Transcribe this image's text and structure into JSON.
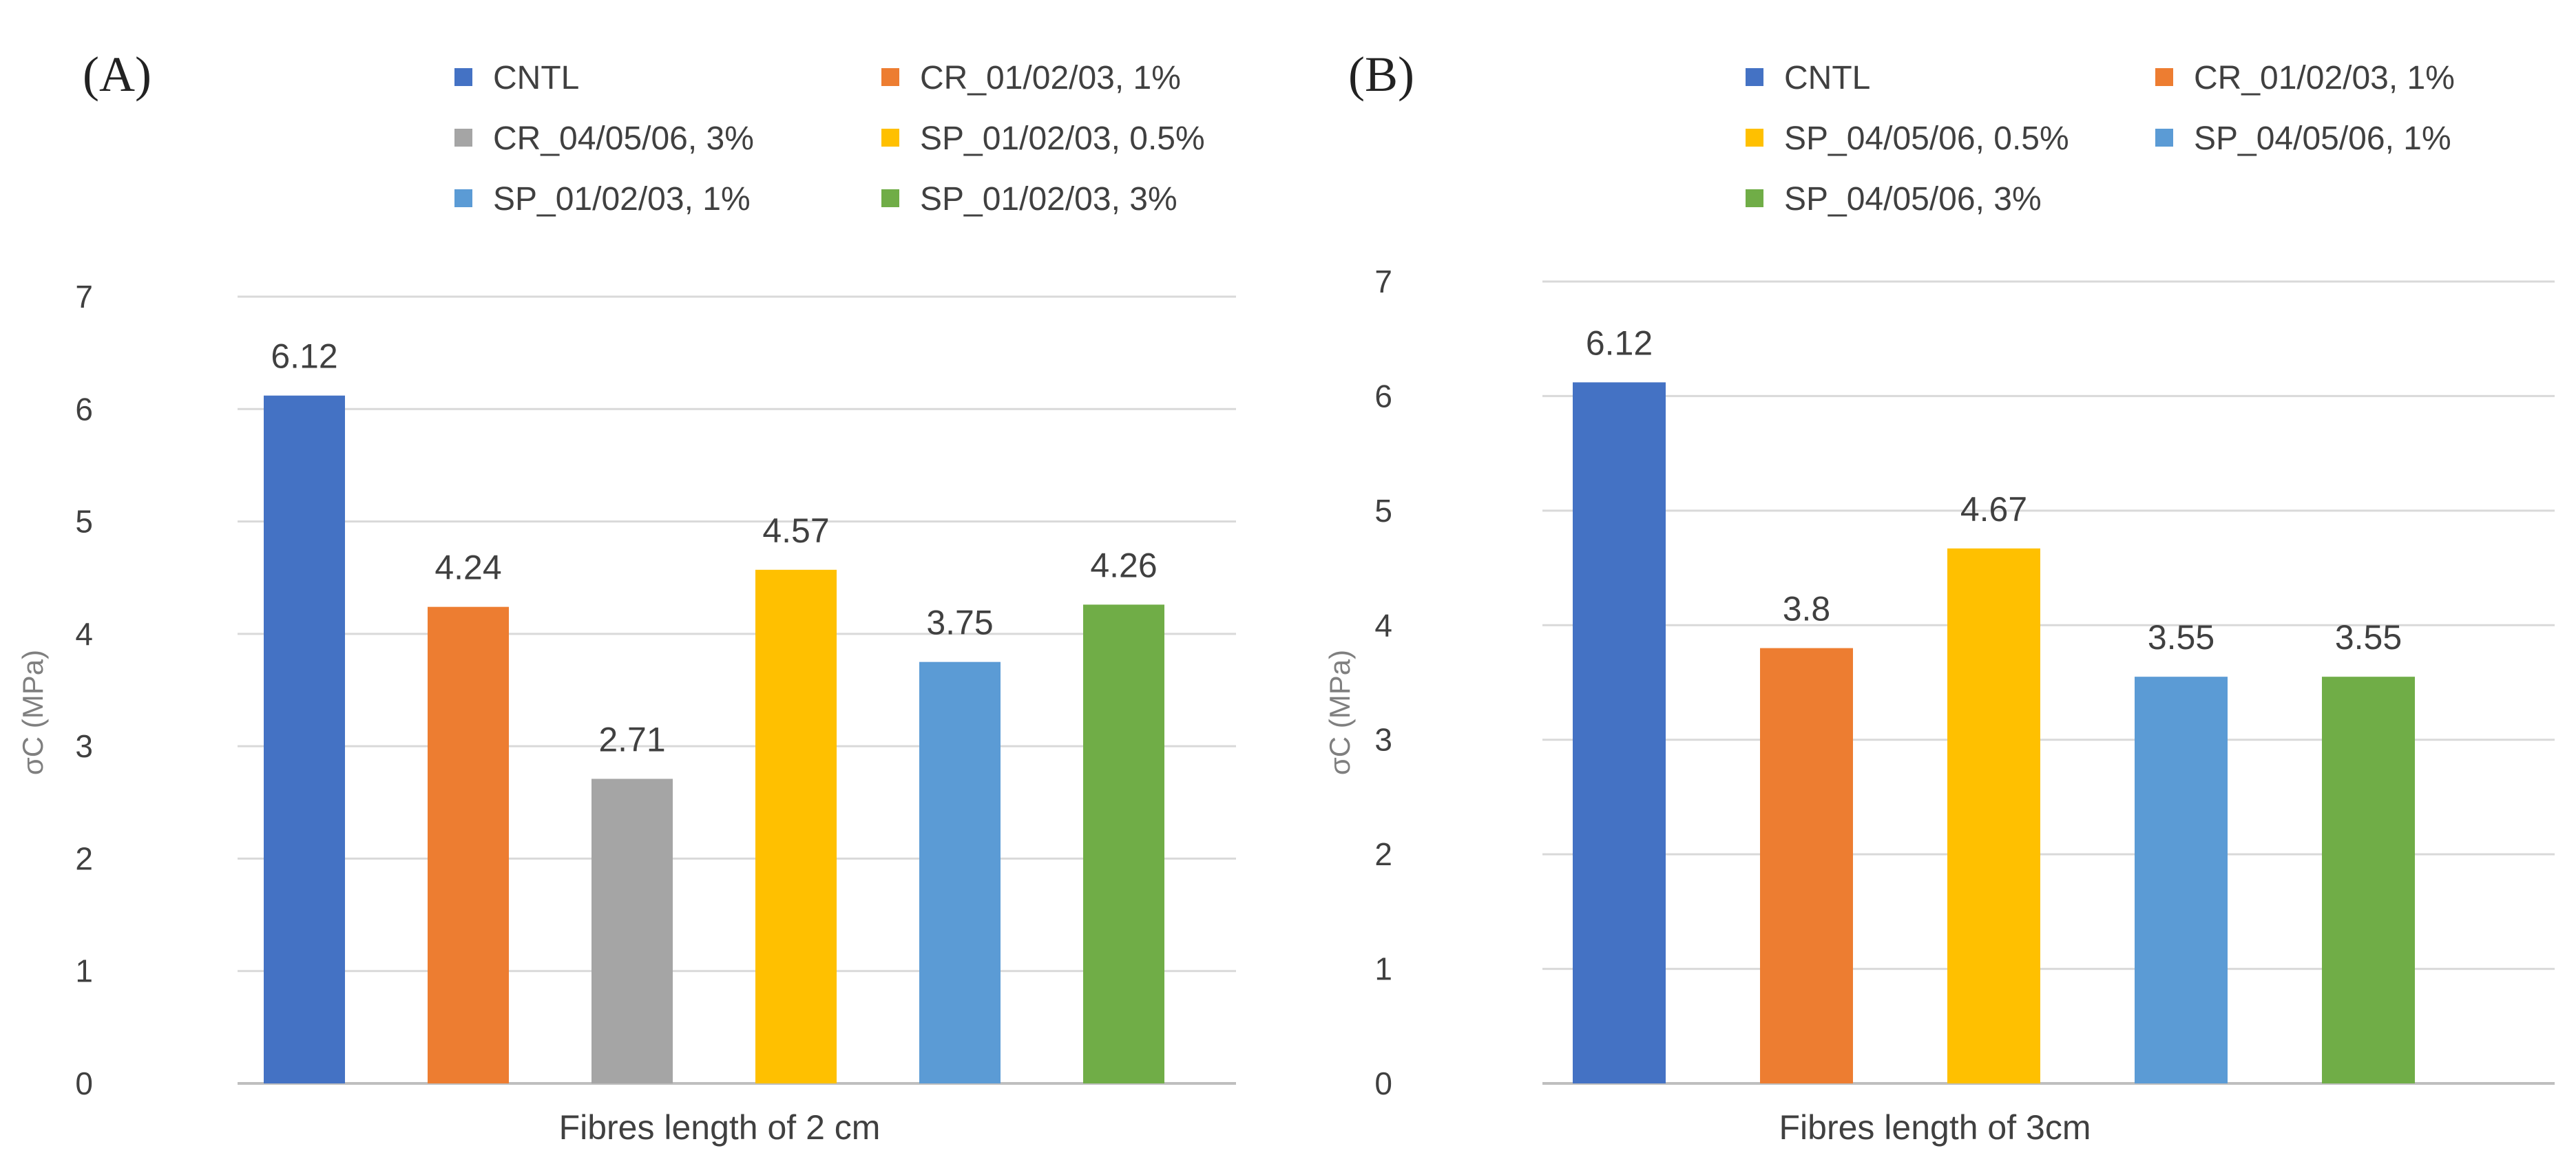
{
  "chart_data": [
    {
      "type": "bar",
      "panel_label": "(A)",
      "xlabel": "Fibres length of 2 cm",
      "ylabel": "σC  (MPa)",
      "ylim": [
        0,
        7
      ],
      "yticks": [
        "0",
        "1",
        "2",
        "3",
        "4",
        "5",
        "6",
        "7"
      ],
      "grid": true,
      "legend_position": "top",
      "series": [
        {
          "name": "CNTL",
          "value": 6.12,
          "label": "6.12",
          "color": "#4472C4"
        },
        {
          "name": "CR_01/02/03, 1%",
          "value": 4.24,
          "label": "4.24",
          "color": "#ED7D31"
        },
        {
          "name": "CR_04/05/06, 3%",
          "value": 2.71,
          "label": "2.71",
          "color": "#A5A5A5"
        },
        {
          "name": "SP_01/02/03, 0.5%",
          "value": 4.57,
          "label": "4.57",
          "color": "#FFC000"
        },
        {
          "name": "SP_01/02/03, 1%",
          "value": 3.75,
          "label": "3.75",
          "color": "#5B9BD5"
        },
        {
          "name": "SP_01/02/03, 3%",
          "value": 4.26,
          "label": "4.26",
          "color": "#70AD47"
        }
      ]
    },
    {
      "type": "bar",
      "panel_label": "(B)",
      "xlabel": "Fibres length of 3cm",
      "ylabel": "σC  (MPa)",
      "ylim": [
        0,
        7
      ],
      "yticks": [
        "0",
        "1",
        "2",
        "3",
        "4",
        "5",
        "6",
        "7"
      ],
      "grid": true,
      "legend_position": "top",
      "series": [
        {
          "name": "CNTL",
          "value": 6.12,
          "label": "6.12",
          "color": "#4472C4"
        },
        {
          "name": "CR_01/02/03, 1%",
          "value": 3.8,
          "label": "3.8",
          "color": "#ED7D31"
        },
        {
          "name": "SP_04/05/06, 0.5%",
          "value": 4.67,
          "label": "4.67",
          "color": "#FFC000"
        },
        {
          "name": "SP_04/05/06, 1%",
          "value": 3.55,
          "label": "3.55",
          "color": "#5B9BD5"
        },
        {
          "name": "SP_04/05/06, 3%",
          "value": 3.55,
          "label": "3.55",
          "color": "#70AD47"
        }
      ]
    }
  ]
}
